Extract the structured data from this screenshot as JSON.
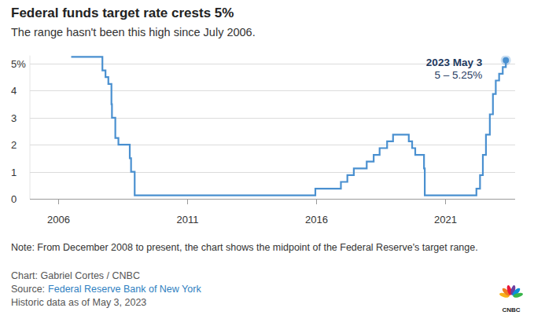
{
  "chart_data": {
    "type": "line",
    "title": "Federal funds target rate crests 5%",
    "subtitle": "The range hasn't been this high since July 2006.",
    "x": [
      2006.5,
      2007.71,
      2007.83,
      2007.94,
      2008.06,
      2008.08,
      2008.21,
      2008.33,
      2008.77,
      2008.82,
      2008.96,
      2015.96,
      2016.95,
      2017.2,
      2017.45,
      2017.95,
      2018.22,
      2018.45,
      2018.74,
      2018.97,
      2019.58,
      2019.71,
      2019.83,
      2020.17,
      2020.2,
      2022.2,
      2022.34,
      2022.45,
      2022.57,
      2022.72,
      2022.84,
      2022.95,
      2023.08,
      2023.22,
      2023.34
    ],
    "values": [
      5.25,
      4.75,
      4.5,
      4.25,
      3.5,
      3.0,
      2.25,
      2.0,
      1.5,
      1.0,
      0.125,
      0.375,
      0.625,
      0.875,
      1.125,
      1.375,
      1.625,
      1.875,
      2.125,
      2.375,
      2.125,
      1.875,
      1.625,
      1.125,
      0.125,
      0.375,
      0.875,
      1.625,
      2.375,
      3.125,
      3.875,
      4.375,
      4.625,
      4.875,
      5.125
    ],
    "color": "#4a90d0",
    "line_style": "step",
    "xlim": [
      2004.9,
      2023.7
    ],
    "xticks": [
      2006,
      2011,
      2016,
      2021
    ],
    "ylim": [
      0,
      5.3
    ],
    "yticks": [
      0,
      1,
      2,
      3,
      4,
      {
        "value": 5,
        "label": "5%"
      }
    ],
    "grid": true,
    "annotations": [
      "2023 May 3",
      "5 – 5.25%"
    ],
    "note": "Note: From December 2008 to present, the chart shows the midpoint of the Federal Reserve's target range.",
    "credit": "Chart: Gabriel Cortes / CNBC",
    "source": {
      "label": "Source:",
      "text": "Federal Reserve Bank of New York"
    },
    "date_note": "Historic data as of May 3, 2023",
    "logo": "CNBC"
  }
}
